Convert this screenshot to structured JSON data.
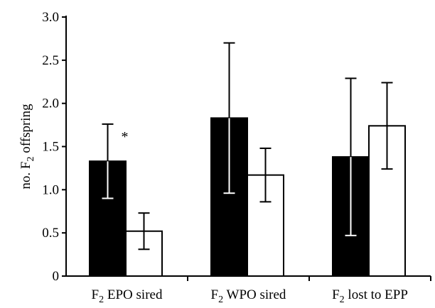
{
  "chart_data": {
    "type": "bar",
    "categories": [
      {
        "label_pre": "F",
        "label_sub": "2",
        "label_post": " EPO sired"
      },
      {
        "label_pre": "F",
        "label_sub": "2",
        "label_post": " WPO sired"
      },
      {
        "label_pre": "F",
        "label_sub": "2",
        "label_post": " lost to EPP"
      }
    ],
    "ylabel": {
      "pre": "no. F",
      "sub": "2",
      "post": " offspring"
    },
    "ylim": [
      0,
      3.0
    ],
    "yticks": [
      "0",
      "0.5",
      "1.0",
      "1.5",
      "2.0",
      "2.5",
      "3.0"
    ],
    "grid": false,
    "legend": "none",
    "series": [
      {
        "color": "#000000",
        "values": [
          1.33,
          1.83,
          1.38
        ],
        "error_low": [
          0.9,
          0.96,
          0.47
        ],
        "error_high": [
          1.76,
          2.7,
          2.29
        ]
      },
      {
        "color": "#ffffff",
        "values": [
          0.52,
          1.17,
          1.74
        ],
        "error_low": [
          0.31,
          0.86,
          1.24
        ],
        "error_high": [
          0.73,
          1.48,
          2.24
        ]
      }
    ],
    "annotations": [
      {
        "text": "*",
        "category_index": 0,
        "series_index": 0
      }
    ]
  }
}
